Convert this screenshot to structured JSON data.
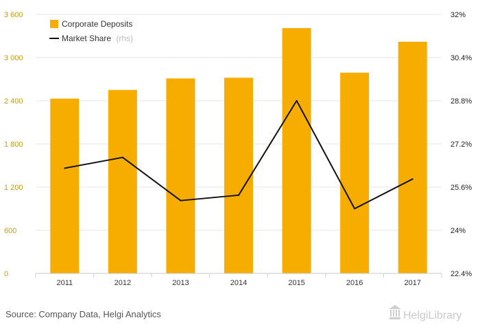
{
  "chart_data": {
    "type": "bar",
    "categories": [
      "2011",
      "2012",
      "2013",
      "2014",
      "2015",
      "2016",
      "2017"
    ],
    "series": [
      {
        "name": "Corporate Deposits",
        "type": "bar",
        "axis": "left",
        "color": "#f7ad00",
        "values": [
          2430,
          2550,
          2710,
          2720,
          3410,
          2790,
          3220
        ]
      },
      {
        "name": "Market Share",
        "legend_suffix": "(rhs)",
        "type": "line",
        "axis": "right",
        "color": "#111111",
        "values": [
          26.3,
          26.7,
          25.1,
          25.3,
          28.8,
          24.8,
          25.9
        ]
      }
    ],
    "left_axis": {
      "ticks": [
        0,
        600,
        1200,
        1800,
        2400,
        3000,
        3600
      ],
      "tick_labels": [
        "0",
        "600",
        "1 200",
        "1 800",
        "2 400",
        "3 000",
        "3 600"
      ],
      "range": [
        0,
        3600
      ]
    },
    "right_axis": {
      "ticks": [
        22.4,
        24,
        25.6,
        27.2,
        28.8,
        30.4,
        32
      ],
      "tick_labels": [
        "22.4%",
        "24%",
        "25.6%",
        "27.2%",
        "28.8%",
        "30.4%",
        "32%"
      ],
      "range": [
        22.4,
        32
      ]
    },
    "grid": true,
    "legend_position": "top-left",
    "title": "",
    "xlabel": "",
    "ylabel": ""
  },
  "footer": {
    "source": "Source: Company Data, Helgi Analytics",
    "brand": "HelgiLibrary"
  }
}
